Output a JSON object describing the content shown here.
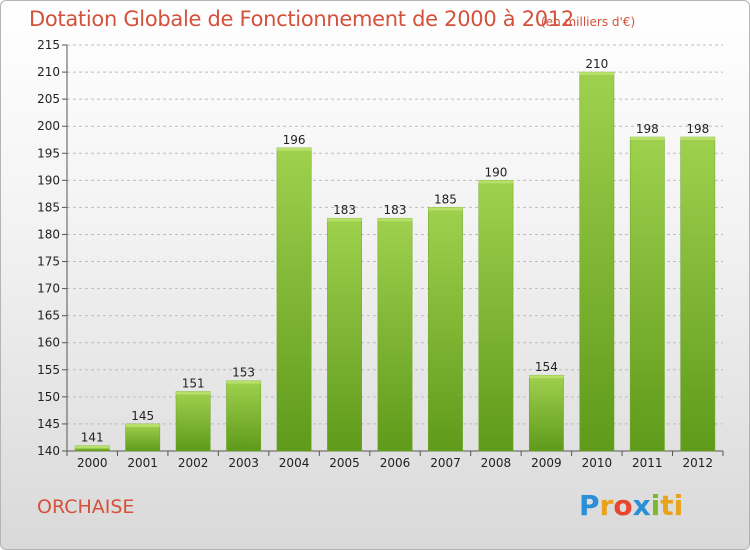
{
  "title": "Dotation Globale de Fonctionnement de 2000 à 2012",
  "subtitle": "(en milliers d'€)",
  "commune": "ORCHAISE",
  "logo": {
    "letters": [
      "P",
      "r",
      "o",
      "x",
      "i",
      "ti"
    ],
    "colors": [
      "#2a8fd6",
      "#e8a21b",
      "#e8472e",
      "#2a8fd6",
      "#7cb82f",
      "#e8a21b"
    ]
  },
  "colors": {
    "bar_light": "#9fd14e",
    "bar_dark": "#5f9a1a",
    "text_accent": "#d4513b",
    "grid": "#bdbdbd"
  },
  "chart_data": {
    "type": "bar",
    "title": "Dotation Globale de Fonctionnement de 2000 à 2012",
    "subtitle": "(en milliers d'€)",
    "xlabel": "",
    "ylabel": "",
    "categories": [
      "2000",
      "2001",
      "2002",
      "2003",
      "2004",
      "2005",
      "2006",
      "2007",
      "2008",
      "2009",
      "2010",
      "2011",
      "2012"
    ],
    "values": [
      141,
      145,
      151,
      153,
      196,
      183,
      183,
      185,
      190,
      154,
      210,
      198,
      198
    ],
    "ylim": [
      140,
      215
    ],
    "yticks": [
      140,
      145,
      150,
      155,
      160,
      165,
      170,
      175,
      180,
      185,
      190,
      195,
      200,
      205,
      210,
      215
    ],
    "grid": true,
    "grid_style": "dashed horizontal",
    "legend": "none",
    "data_labels": true
  }
}
